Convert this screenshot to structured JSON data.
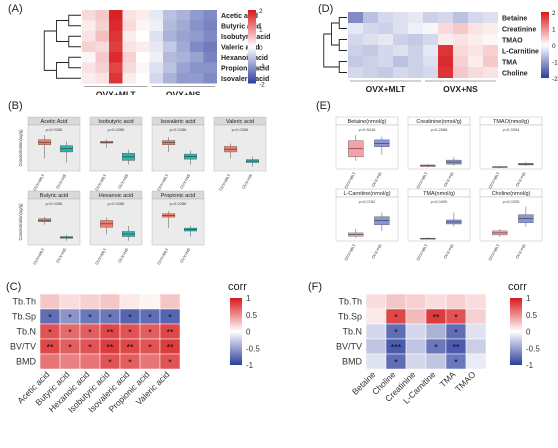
{
  "colors": {
    "high": "#d7191c",
    "mid": "#ffffff",
    "low": "#2c3e9e",
    "mlt_box": "#ef7d6b",
    "ns_box": "#2bb5b0",
    "box_pink": "#f4a2a8",
    "box_blue": "#8b95d6"
  },
  "panels": {
    "A": {
      "label": "(A)",
      "rows": [
        "Acetic acid",
        "Butyric acid",
        "Isobutyric acid",
        "Valeric acid",
        "Hexanoic acid",
        "Propionic acid",
        "Isovaleric acid"
      ],
      "group_labels": [
        "OVX+MLT",
        "OVX+NS"
      ],
      "scale_ticks": [
        "2",
        "1",
        "0",
        "-1",
        "-2"
      ],
      "matrix": [
        [
          0.4,
          0.6,
          2.4,
          0.3,
          0.2,
          -0.3,
          -0.8,
          -1.0,
          -1.3,
          -1.5
        ],
        [
          0.2,
          0.5,
          2.3,
          0.4,
          0.1,
          -0.2,
          -0.9,
          -1.1,
          -1.4,
          -1.6
        ],
        [
          0.3,
          0.7,
          2.2,
          0.2,
          0.0,
          -0.4,
          -1.0,
          -1.2,
          -1.3,
          -1.5
        ],
        [
          0.5,
          0.4,
          2.1,
          0.3,
          0.2,
          -0.3,
          -0.7,
          -1.1,
          -1.5,
          -1.7
        ],
        [
          0.1,
          0.6,
          2.3,
          0.5,
          0.0,
          -0.2,
          -0.9,
          -1.0,
          -1.2,
          -1.6
        ],
        [
          0.3,
          0.5,
          2.0,
          0.4,
          0.1,
          -0.4,
          -0.8,
          -1.2,
          -1.4,
          -1.4
        ],
        [
          0.2,
          0.3,
          2.2,
          0.2,
          0.0,
          -0.5,
          -1.0,
          -1.3,
          -1.3,
          -1.5
        ]
      ]
    },
    "B": {
      "label": "(B)",
      "ylabel": "Concentration(ug/g)",
      "groups": [
        "OVX+MLT",
        "OVX+NS"
      ],
      "plots": [
        {
          "title": "Acetic Acid",
          "p": "p=0.0286",
          "mlt": [
            0.3,
            0.62,
            0.74,
            0.85
          ],
          "ns": [
            0.2,
            0.45,
            0.6,
            0.7
          ]
        },
        {
          "title": "Isobutyric acid",
          "p": "p=0.0286",
          "mlt": [
            0.55,
            0.66,
            0.7,
            0.74
          ],
          "ns": [
            0.15,
            0.25,
            0.42,
            0.5
          ]
        },
        {
          "title": "Isovaleric acid",
          "p": "p=0.0286",
          "mlt": [
            0.45,
            0.62,
            0.72,
            0.8
          ],
          "ns": [
            0.15,
            0.28,
            0.4,
            0.48
          ]
        },
        {
          "title": "Valeric acid",
          "p": "p=0.0286",
          "mlt": [
            0.3,
            0.45,
            0.58,
            0.65
          ],
          "ns": [
            0.1,
            0.2,
            0.27,
            0.34
          ]
        },
        {
          "title": "Butyric acid",
          "p": "p=0.0286",
          "mlt": [
            0.48,
            0.55,
            0.62,
            0.66
          ],
          "ns": [
            0.1,
            0.16,
            0.2,
            0.24
          ]
        },
        {
          "title": "Hexanoic acid",
          "p": "p=0.0286",
          "mlt": [
            0.25,
            0.42,
            0.58,
            0.65
          ],
          "ns": [
            0.1,
            0.2,
            0.32,
            0.45
          ]
        },
        {
          "title": "Propionic acid",
          "p": "p=0.0286",
          "mlt": [
            0.4,
            0.66,
            0.74,
            0.8
          ],
          "ns": [
            0.2,
            0.33,
            0.4,
            0.45
          ]
        }
      ]
    },
    "C": {
      "label": "(C)",
      "rows": [
        "Tb.Th",
        "Tb.Sp",
        "Tb.N",
        "BV/TV",
        "BMD"
      ],
      "cols": [
        "Acetic acid",
        "Butyric acid",
        "Hexanoic acid",
        "Isobutyric acid",
        "Isovaleric acid",
        "Propionic acid",
        "Valeric acid"
      ],
      "values": [
        [
          0.25,
          0.15,
          0.2,
          0.25,
          0.1,
          0.05,
          0.25
        ],
        [
          -0.75,
          -0.55,
          -0.7,
          -0.7,
          -0.8,
          -0.75,
          -0.8
        ],
        [
          0.75,
          0.65,
          0.7,
          0.8,
          0.75,
          0.7,
          0.8
        ],
        [
          0.8,
          0.7,
          0.75,
          0.85,
          0.8,
          0.75,
          0.85
        ],
        [
          0.6,
          0.55,
          0.6,
          0.75,
          0.7,
          0.6,
          0.75
        ]
      ],
      "stars": [
        [
          "",
          "",
          "",
          "",
          "",
          "",
          ""
        ],
        [
          "*",
          "*",
          "*",
          "*",
          "*",
          "*",
          "*"
        ],
        [
          "*",
          "*",
          "*",
          "**",
          "*",
          "*",
          "**"
        ],
        [
          "**",
          "*",
          "*",
          "**",
          "**",
          "*",
          "**"
        ],
        [
          "",
          "",
          "",
          "*",
          "*",
          "",
          "*"
        ]
      ],
      "legend_title": "corr",
      "legend_ticks": [
        "1",
        "0.5",
        "0",
        "-0.5",
        "-1"
      ]
    },
    "D": {
      "label": "(D)",
      "rows": [
        "Betaine",
        "Creatinine",
        "TMAO",
        "L-Carnitine",
        "TMA",
        "Choline"
      ],
      "group_labels": [
        "OVX+MLT",
        "OVX+NS"
      ],
      "scale_ticks": [
        "2",
        "1",
        "0",
        "-1",
        "-2"
      ],
      "matrix": [
        [
          -1.5,
          -0.8,
          -0.5,
          -0.4,
          -0.3,
          -0.6,
          -0.5,
          -0.8,
          -0.5,
          -0.4
        ],
        [
          -0.3,
          -0.5,
          -0.6,
          -0.4,
          -0.2,
          -0.1,
          0.4,
          0.6,
          0.3,
          0.2
        ],
        [
          -0.5,
          -0.4,
          -0.3,
          -0.6,
          -0.7,
          -0.5,
          0.2,
          0.3,
          0.2,
          0.1
        ],
        [
          -0.6,
          -0.7,
          -0.5,
          -0.4,
          -0.6,
          -0.3,
          2.2,
          0.4,
          0.3,
          0.5
        ],
        [
          -0.7,
          -0.6,
          -0.5,
          -0.8,
          -0.6,
          -0.4,
          2.3,
          0.5,
          0.2,
          0.6
        ],
        [
          -0.5,
          -0.6,
          -0.7,
          -0.5,
          -0.6,
          -0.5,
          2.2,
          0.6,
          0.4,
          0.3
        ]
      ]
    },
    "E": {
      "label": "(E)",
      "groups": [
        "OVX+MLT",
        "OVX+NS"
      ],
      "plots": [
        {
          "title": "Betaine(nmol/g)",
          "p": "p=0.8418",
          "mlt": [
            0.2,
            0.3,
            0.7,
            0.85
          ],
          "ns": [
            0.35,
            0.55,
            0.72,
            0.8
          ]
        },
        {
          "title": "Creatinine(nmol/g)",
          "p": "p=0.2658",
          "mlt": [
            0.04,
            0.06,
            0.1,
            0.12
          ],
          "ns": [
            0.08,
            0.12,
            0.22,
            0.3
          ]
        },
        {
          "title": "TMAO(nmol/g)",
          "p": "p=0.3394",
          "mlt": [
            0.02,
            0.04,
            0.06,
            0.08
          ],
          "ns": [
            0.08,
            0.1,
            0.14,
            0.18
          ]
        },
        {
          "title": "L-Carnitine(nmol/g)",
          "p": "p=0.0762",
          "mlt": [
            0.08,
            0.12,
            0.2,
            0.3
          ],
          "ns": [
            0.25,
            0.4,
            0.6,
            0.7
          ]
        },
        {
          "title": "TMA(nmol/g)",
          "p": "p=0.0400",
          "mlt": [
            0.04,
            0.05,
            0.07,
            0.09
          ],
          "ns": [
            0.35,
            0.42,
            0.52,
            0.7
          ]
        },
        {
          "title": "Choline(nmol/g)",
          "p": "p=0.0325",
          "mlt": [
            0.1,
            0.15,
            0.25,
            0.3
          ],
          "ns": [
            0.35,
            0.45,
            0.65,
            0.85
          ]
        }
      ]
    },
    "F": {
      "label": "(F)",
      "rows": [
        "Tb.Th",
        "Tb.Sp",
        "Tb.N",
        "BV/TV",
        "BMD"
      ],
      "cols": [
        "Betaine",
        "Choline",
        "Creatinine",
        "L-Carnitine",
        "TMA",
        "TMAO"
      ],
      "values": [
        [
          0.15,
          0.25,
          0.2,
          0.15,
          0.2,
          0.15
        ],
        [
          0.1,
          0.8,
          0.3,
          0.85,
          0.75,
          0.2
        ],
        [
          -0.2,
          -0.75,
          -0.2,
          -0.4,
          -0.75,
          -0.15
        ],
        [
          -0.3,
          -0.85,
          -0.3,
          -0.7,
          -0.85,
          -0.25
        ],
        [
          -0.15,
          -0.75,
          -0.2,
          -0.3,
          -0.7,
          -0.1
        ]
      ],
      "stars": [
        [
          "",
          "",
          "",
          "",
          "",
          ""
        ],
        [
          "",
          "*",
          "",
          "**",
          "*",
          ""
        ],
        [
          "",
          "*",
          "",
          "",
          "*",
          ""
        ],
        [
          "",
          "***",
          "",
          "*",
          "**",
          ""
        ],
        [
          "",
          "*",
          "",
          "",
          "*",
          ""
        ]
      ],
      "legend_title": "corr",
      "legend_ticks": [
        "1",
        "0.5",
        "0",
        "-0.5",
        "-1"
      ]
    }
  }
}
